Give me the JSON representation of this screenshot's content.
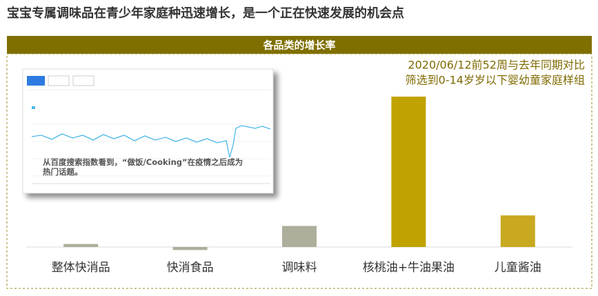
{
  "title": "宝宝专属调味品在青少年家庭种迅速增长，是一个正在快速发展的机会点",
  "inset": {
    "caption": "从百度搜索指数看到，“做饭/Cooking”在疫情之后成为热门话题。"
  },
  "chart_data": {
    "type": "bar",
    "title": "各品类的增长率",
    "annotations": [
      "2020/06/12前52周与去年同期对比",
      "筛选到0-14岁岁以下婴幼童家庭样组"
    ],
    "categories": [
      "整体快消品",
      "快消食品",
      "调味料",
      "核桃油+牛油果油",
      "儿童酱油"
    ],
    "values": [
      2,
      -2,
      14,
      100,
      21
    ],
    "colors": [
      "#aeae9c",
      "#aeae9c",
      "#aeae9c",
      "#c0a300",
      "#c8a920"
    ]
  }
}
